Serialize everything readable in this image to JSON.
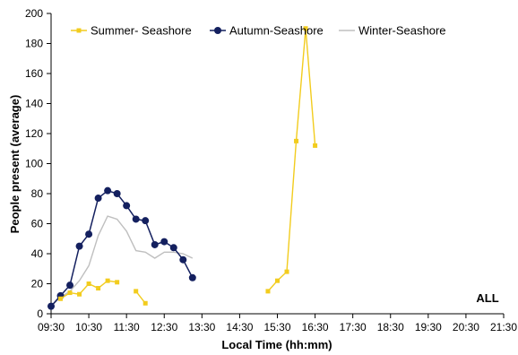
{
  "chart_data": {
    "type": "line",
    "title": "",
    "xlabel": "Local Time (hh:mm)",
    "ylabel": "People present (average)",
    "xlim": [
      "09:30",
      "21:30"
    ],
    "ylim": [
      0,
      200
    ],
    "x_ticks": [
      "09:30",
      "10:30",
      "11:30",
      "12:30",
      "13:30",
      "14:30",
      "15:30",
      "16:30",
      "17:30",
      "18:30",
      "19:30",
      "20:30",
      "21:30"
    ],
    "y_ticks": [
      0,
      20,
      40,
      60,
      80,
      100,
      120,
      140,
      160,
      180,
      200
    ],
    "grid": false,
    "legend_position": "top",
    "annotation": "ALL",
    "colors": {
      "summer": "#F2CC1E",
      "autumn": "#14205F",
      "winter": "#BFBFBF",
      "axis": "#000000"
    },
    "series": [
      {
        "name": "Summer- Seashore",
        "marker": "square",
        "segments": [
          [
            [
              "09:45",
              10
            ],
            [
              "10:00",
              14
            ],
            [
              "10:15",
              13
            ],
            [
              "10:30",
              20
            ],
            [
              "10:45",
              17
            ],
            [
              "11:00",
              22
            ],
            [
              "11:15",
              21
            ]
          ],
          [
            [
              "11:45",
              15
            ],
            [
              "12:00",
              7
            ]
          ],
          [
            [
              "15:15",
              15
            ],
            [
              "15:30",
              22
            ],
            [
              "15:45",
              28
            ],
            [
              "16:00",
              115
            ],
            [
              "16:15",
              190
            ],
            [
              "16:30",
              112
            ]
          ]
        ]
      },
      {
        "name": "Autumn-Seashore",
        "marker": "circle",
        "segments": [
          [
            [
              "09:30",
              5
            ],
            [
              "09:45",
              12
            ],
            [
              "10:00",
              19
            ],
            [
              "10:15",
              45
            ],
            [
              "10:30",
              53
            ],
            [
              "10:45",
              77
            ],
            [
              "11:00",
              82
            ],
            [
              "11:15",
              80
            ],
            [
              "11:30",
              72
            ],
            [
              "11:45",
              63
            ],
            [
              "12:00",
              62
            ],
            [
              "12:15",
              46
            ],
            [
              "12:30",
              48
            ],
            [
              "12:45",
              44
            ],
            [
              "13:00",
              36
            ],
            [
              "13:15",
              24
            ]
          ]
        ]
      },
      {
        "name": "Winter-Seashore",
        "marker": "none",
        "segments": [
          [
            [
              "09:30",
              5
            ],
            [
              "09:45",
              11
            ],
            [
              "10:00",
              15
            ],
            [
              "10:15",
              22
            ],
            [
              "10:30",
              32
            ],
            [
              "10:45",
              52
            ],
            [
              "11:00",
              65
            ],
            [
              "11:15",
              63
            ],
            [
              "11:30",
              55
            ],
            [
              "11:45",
              42
            ],
            [
              "12:00",
              41
            ],
            [
              "12:15",
              37
            ],
            [
              "12:30",
              41
            ],
            [
              "12:45",
              41
            ],
            [
              "13:00",
              40
            ],
            [
              "13:15",
              37
            ]
          ]
        ]
      }
    ]
  }
}
